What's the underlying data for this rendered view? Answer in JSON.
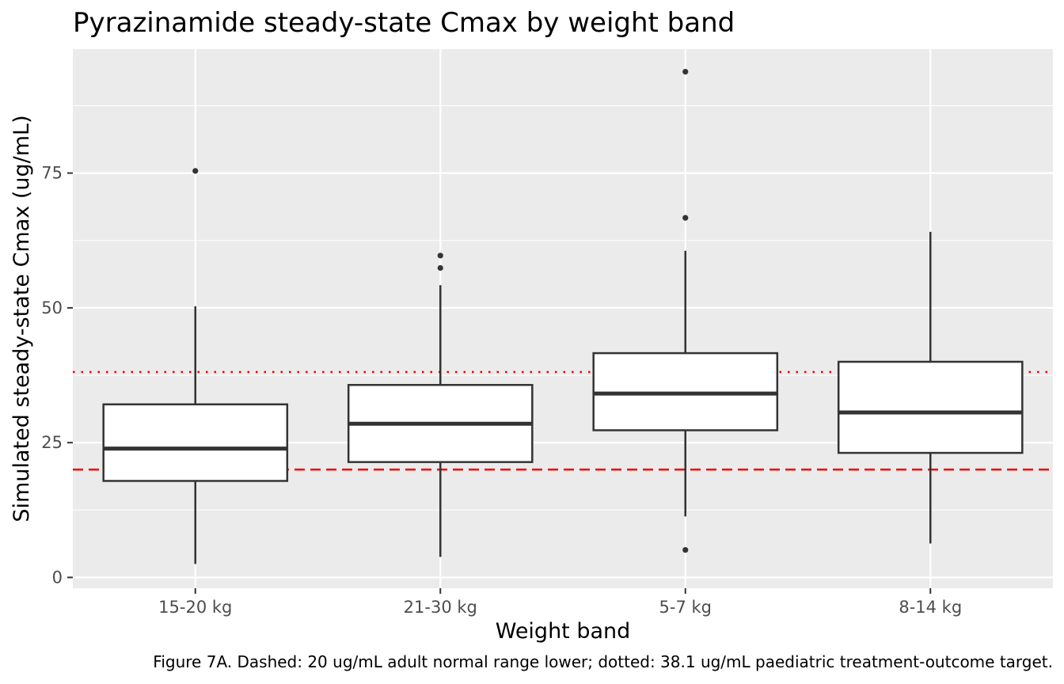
{
  "chart_data": {
    "type": "boxplot",
    "title": "Pyrazinamide steady-state Cmax by weight band",
    "xlabel": "Weight band",
    "ylabel": "Simulated steady-state Cmax (ug/mL)",
    "caption": "Figure 7A. Dashed: 20 ug/mL adult normal range lower; dotted: 38.1 ug/mL paediatric treatment-outcome target.",
    "categories": [
      "15-20 kg",
      "21-30 kg",
      "5-7 kg",
      "8-14 kg"
    ],
    "ylim": [
      -2,
      98
    ],
    "yticks": [
      0,
      25,
      50,
      75
    ],
    "ytick_labels": [
      "0",
      "25",
      "50",
      "75"
    ],
    "grid": true,
    "boxes": [
      {
        "category": "15-20 kg",
        "whisker_low": 2.5,
        "q1": 17.9,
        "median": 23.9,
        "q3": 32.1,
        "whisker_high": 50.3,
        "outliers": [
          75.4
        ]
      },
      {
        "category": "21-30 kg",
        "whisker_low": 3.8,
        "q1": 21.4,
        "median": 28.5,
        "q3": 35.7,
        "whisker_high": 54.2,
        "outliers": [
          57.4,
          59.7
        ]
      },
      {
        "category": "5-7 kg",
        "whisker_low": 11.3,
        "q1": 27.3,
        "median": 34.1,
        "q3": 41.6,
        "whisker_high": 60.6,
        "outliers": [
          5.1,
          66.7,
          93.8
        ]
      },
      {
        "category": "8-14 kg",
        "whisker_low": 6.3,
        "q1": 23.1,
        "median": 30.6,
        "q3": 40.0,
        "whisker_high": 64.1,
        "outliers": []
      }
    ],
    "reference_lines": [
      {
        "value": 20,
        "style": "dashed",
        "color": "#ee0000"
      },
      {
        "value": 38.1,
        "style": "dotted",
        "color": "#ee0000"
      }
    ],
    "colors": {
      "panel": "#ebebeb",
      "grid": "#ffffff",
      "box_fill": "#ffffff",
      "box_line": "#333333"
    }
  }
}
